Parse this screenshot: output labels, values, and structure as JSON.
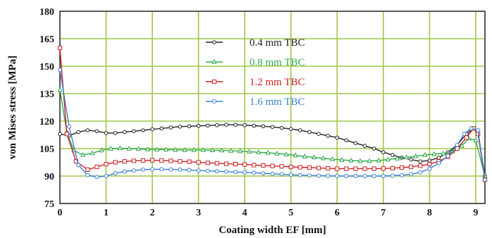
{
  "chart_data": {
    "type": "line",
    "xlabel": "Coating width EF [mm]",
    "ylabel": "von Mises stress [MPa]",
    "xlim": [
      0,
      9.2
    ],
    "ylim": [
      75,
      180
    ],
    "xticks": [
      "0",
      "1",
      "2",
      "3",
      "4",
      "5",
      "6",
      "7",
      "8",
      "9"
    ],
    "yticks": [
      "75",
      "90",
      "105",
      "120",
      "135",
      "150",
      "165",
      "180"
    ],
    "grid": true,
    "legend_position": "top-center",
    "series": [
      {
        "name": "0.4 mm TBC",
        "color": "#222222",
        "marker": "circle",
        "x": [
          0,
          0.2,
          0.4,
          0.6,
          0.8,
          1.0,
          1.2,
          1.4,
          1.6,
          1.8,
          2.0,
          2.2,
          2.4,
          2.6,
          2.8,
          3.0,
          3.2,
          3.4,
          3.6,
          3.8,
          4.0,
          4.2,
          4.4,
          4.6,
          4.8,
          5.0,
          5.2,
          5.4,
          5.6,
          5.8,
          6.0,
          6.2,
          6.4,
          6.6,
          6.8,
          7.0,
          7.2,
          7.4,
          7.6,
          7.8,
          8.0,
          8.2,
          8.4,
          8.6,
          8.8,
          8.95,
          9.05,
          9.2
        ],
        "y": [
          113,
          112,
          114,
          115,
          114.5,
          113.5,
          113.5,
          114,
          114.5,
          115,
          115.5,
          116,
          116.5,
          117,
          117.2,
          117.4,
          117.6,
          117.8,
          118,
          118,
          117.8,
          117.5,
          117.2,
          116.8,
          116.3,
          115.7,
          115,
          114,
          113,
          112,
          111,
          109.5,
          108,
          106.5,
          105,
          103,
          101.5,
          100,
          99,
          98,
          98.5,
          100,
          103,
          107,
          113,
          116,
          113,
          90
        ]
      },
      {
        "name": "0.8 mm TBC",
        "color": "#2fa84a",
        "marker": "triangle",
        "x": [
          0,
          0.15,
          0.3,
          0.5,
          0.7,
          0.9,
          1.1,
          1.3,
          1.5,
          1.7,
          1.9,
          2.1,
          2.3,
          2.5,
          2.7,
          2.9,
          3.1,
          3.3,
          3.5,
          3.7,
          3.9,
          4.1,
          4.3,
          4.5,
          4.7,
          4.9,
          5.1,
          5.3,
          5.5,
          5.7,
          5.9,
          6.1,
          6.3,
          6.5,
          6.7,
          6.9,
          7.1,
          7.3,
          7.5,
          7.7,
          7.9,
          8.1,
          8.3,
          8.5,
          8.7,
          8.85,
          9.0,
          9.2
        ],
        "y": [
          137,
          114,
          104,
          101.5,
          102.5,
          104,
          105,
          105.2,
          105,
          104.8,
          104.6,
          104.5,
          104.4,
          104.3,
          104.2,
          104.2,
          104.2,
          104.1,
          104,
          103.8,
          103.6,
          103.3,
          103,
          102.7,
          102.3,
          101.8,
          101.3,
          100.7,
          100.2,
          99.7,
          99.2,
          98.8,
          98.5,
          98.2,
          98.2,
          98.5,
          99,
          99.6,
          100.2,
          100.8,
          101.5,
          102,
          102.3,
          103.5,
          106.5,
          110.5,
          109.5,
          90
        ]
      },
      {
        "name": "1.2 mm TBC",
        "color": "#cc2222",
        "marker": "square",
        "x": [
          0,
          0.15,
          0.35,
          0.6,
          0.8,
          1.0,
          1.2,
          1.4,
          1.6,
          1.8,
          2.0,
          2.2,
          2.4,
          2.6,
          2.8,
          3.0,
          3.2,
          3.4,
          3.6,
          3.8,
          4.0,
          4.2,
          4.4,
          4.6,
          4.8,
          5.0,
          5.2,
          5.4,
          5.6,
          5.8,
          6.0,
          6.2,
          6.4,
          6.6,
          6.8,
          7.0,
          7.2,
          7.4,
          7.6,
          7.8,
          8.0,
          8.2,
          8.4,
          8.6,
          8.8,
          8.95,
          9.05,
          9.2
        ],
        "y": [
          160,
          113,
          98,
          93.5,
          95,
          96.5,
          97.5,
          98,
          98.3,
          98.5,
          98.6,
          98.5,
          98.3,
          98,
          97.8,
          97.5,
          97.2,
          97,
          96.7,
          96.5,
          96.3,
          96,
          95.8,
          95.5,
          95.3,
          95,
          94.8,
          94.6,
          94.4,
          94.2,
          94,
          94,
          94,
          94,
          94,
          94.1,
          94.3,
          94.6,
          95,
          95.6,
          96.5,
          98,
          100.5,
          105,
          111,
          116,
          113,
          88
        ]
      },
      {
        "name": "1.6 mm TBC",
        "color": "#3a7fd5",
        "marker": "circle-open",
        "x": [
          0,
          0.2,
          0.4,
          0.6,
          0.8,
          1.0,
          1.2,
          1.4,
          1.6,
          1.8,
          2.0,
          2.2,
          2.4,
          2.6,
          2.8,
          3.0,
          3.2,
          3.4,
          3.6,
          3.8,
          4.0,
          4.2,
          4.4,
          4.6,
          4.8,
          5.0,
          5.2,
          5.4,
          5.6,
          5.8,
          6.0,
          6.2,
          6.4,
          6.6,
          6.8,
          7.0,
          7.2,
          7.4,
          7.6,
          7.8,
          8.0,
          8.2,
          8.4,
          8.6,
          8.75,
          8.9,
          9.05,
          9.2
        ],
        "y": [
          148,
          117,
          96,
          90.5,
          89.5,
          90,
          91.5,
          92.5,
          93,
          93.5,
          93.7,
          93.7,
          93.6,
          93.5,
          93.3,
          93,
          92.8,
          92.6,
          92.4,
          92.2,
          92,
          91.8,
          91.5,
          91.2,
          91,
          90.7,
          90.5,
          90.3,
          90.2,
          90.1,
          90,
          90,
          90,
          90,
          90,
          90,
          90.2,
          90.5,
          91,
          92,
          94,
          97,
          101,
          107,
          113,
          116,
          115,
          88
        ]
      }
    ]
  }
}
